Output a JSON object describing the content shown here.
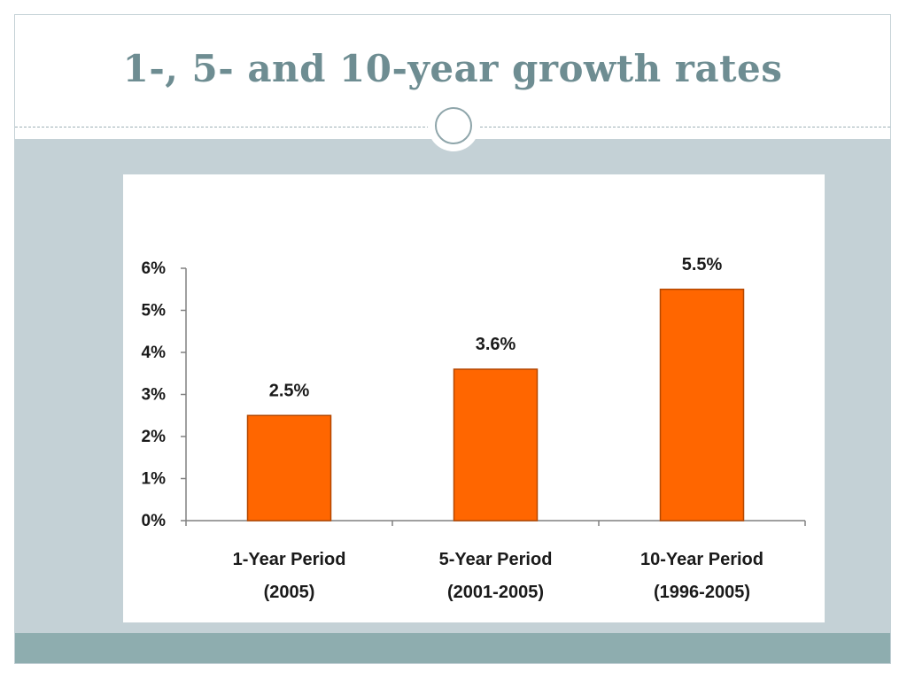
{
  "slide": {
    "title": "1-, 5- and 10-year growth rates"
  },
  "colors": {
    "title": "#6e8d92",
    "content_background": "#c4d1d6",
    "footer_bar": "#8eadaf",
    "bar_fill": "#ff6600",
    "bar_stroke": "#b34700"
  },
  "chart_data": {
    "type": "bar",
    "title": "",
    "xlabel": "",
    "ylabel": "",
    "categories": [
      [
        "1-Year Period",
        "(2005)"
      ],
      [
        "5-Year Period",
        "(2001-2005)"
      ],
      [
        "10-Year Period",
        "(1996-2005)"
      ]
    ],
    "values": [
      2.5,
      3.6,
      5.5
    ],
    "data_labels": [
      "2.5%",
      "3.6%",
      "5.5%"
    ],
    "ylim": [
      0,
      6
    ],
    "yticks": [
      0,
      1,
      2,
      3,
      4,
      5,
      6
    ],
    "ytick_labels": [
      "0%",
      "1%",
      "2%",
      "3%",
      "4%",
      "5%",
      "6%"
    ],
    "grid": false,
    "legend": "none"
  }
}
